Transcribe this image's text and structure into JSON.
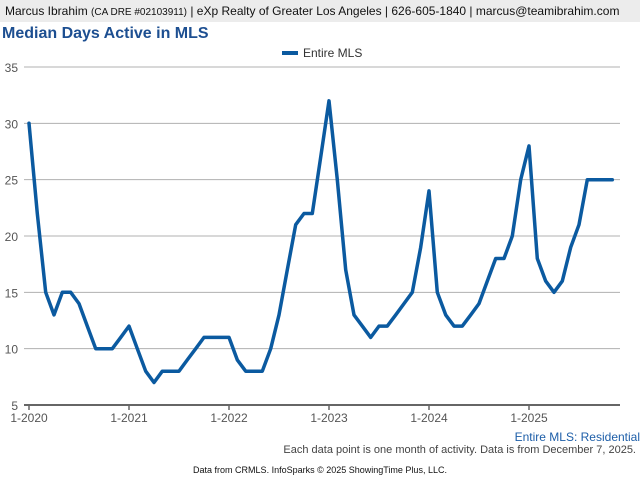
{
  "header": {
    "name": "Marcus Ibrahim",
    "license": "(CA DRE #02103911)",
    "rest": "| eXp Realty of Greater Los Angeles | 626-605-1840 | marcus@teamibrahim.com"
  },
  "footnote": "Each data point is one month of activity. Data is from December 7, 2025.",
  "credit": "Data from CRMLS. InfoSparks © 2025 ShowingTime Plus, LLC.",
  "series_sublabel": "Entire MLS: Residential",
  "colors": {
    "line": "#0b5aa0",
    "grid": "#b0b0b0",
    "title": "#1d4f91"
  },
  "chart_data": {
    "type": "line",
    "title": "Median Days Active in MLS",
    "xlabel": "",
    "ylabel": "",
    "ylim": [
      5,
      35
    ],
    "yticks": [
      5,
      10,
      15,
      20,
      25,
      30,
      35
    ],
    "xtick_labels": [
      "1-2020",
      "1-2021",
      "1-2022",
      "1-2023",
      "1-2024",
      "1-2025"
    ],
    "x_start": "1-2020",
    "x_end": "11-2025",
    "grid": true,
    "legend": "top-center",
    "series": [
      {
        "name": "Entire MLS",
        "values": [
          30,
          22,
          15,
          13,
          15,
          15,
          14,
          12,
          10,
          10,
          10,
          11,
          12,
          10,
          8,
          7,
          8,
          8,
          8,
          9,
          10,
          11,
          11,
          11,
          11,
          9,
          8,
          8,
          8,
          10,
          13,
          17,
          21,
          22,
          22,
          27,
          32,
          25,
          17,
          13,
          12,
          11,
          12,
          12,
          13,
          14,
          15,
          19,
          24,
          15,
          13,
          12,
          12,
          13,
          14,
          16,
          18,
          18,
          20,
          25,
          28,
          18,
          16,
          15,
          16,
          19,
          21,
          25,
          25,
          25,
          25
        ]
      }
    ]
  }
}
